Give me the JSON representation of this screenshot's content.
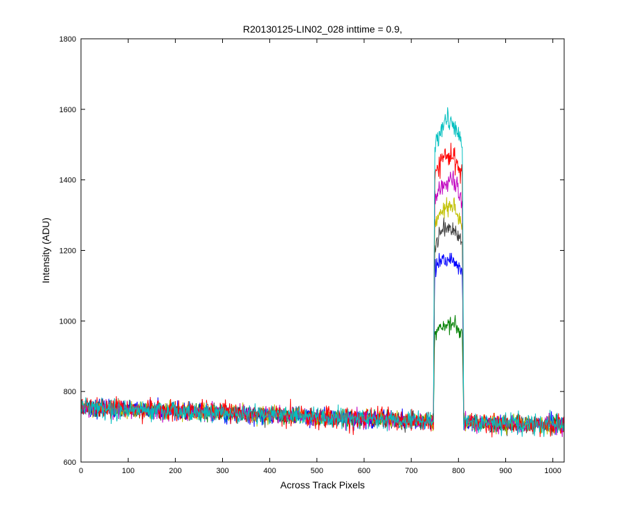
{
  "chart_data": {
    "type": "line",
    "title": "R20130125-LIN02_028 inttime = 0.9,",
    "xlabel": "Across Track Pixels",
    "ylabel": "Intensity (ADU)",
    "xlim": [
      0,
      1024
    ],
    "ylim": [
      600,
      1800
    ],
    "xticks": [
      0,
      100,
      200,
      300,
      400,
      500,
      600,
      700,
      800,
      900,
      1000
    ],
    "yticks": [
      600,
      800,
      1000,
      1200,
      1400,
      1600,
      1800
    ],
    "grid": false,
    "legend": "none",
    "background_level": {
      "x": [
        0,
        750,
        810,
        1024
      ],
      "y": [
        755,
        715,
        712,
        705
      ]
    },
    "plateau": {
      "x_start": 748,
      "x_end": 810
    },
    "series": [
      {
        "color": "#008000",
        "peak": 990,
        "noise": 10,
        "seed": 11
      },
      {
        "color": "#0000ff",
        "peak": 1175,
        "noise": 12,
        "seed": 23
      },
      {
        "color": "#404040",
        "peak": 1265,
        "noise": 12,
        "seed": 37
      },
      {
        "color": "#c0c000",
        "peak": 1325,
        "noise": 12,
        "seed": 41
      },
      {
        "color": "#c000c0",
        "peak": 1395,
        "noise": 12,
        "seed": 53
      },
      {
        "color": "#ff0000",
        "peak": 1470,
        "noise": 14,
        "seed": 67
      },
      {
        "color": "#00bfbf",
        "peak": 1565,
        "noise": 14,
        "seed": 79
      }
    ]
  }
}
